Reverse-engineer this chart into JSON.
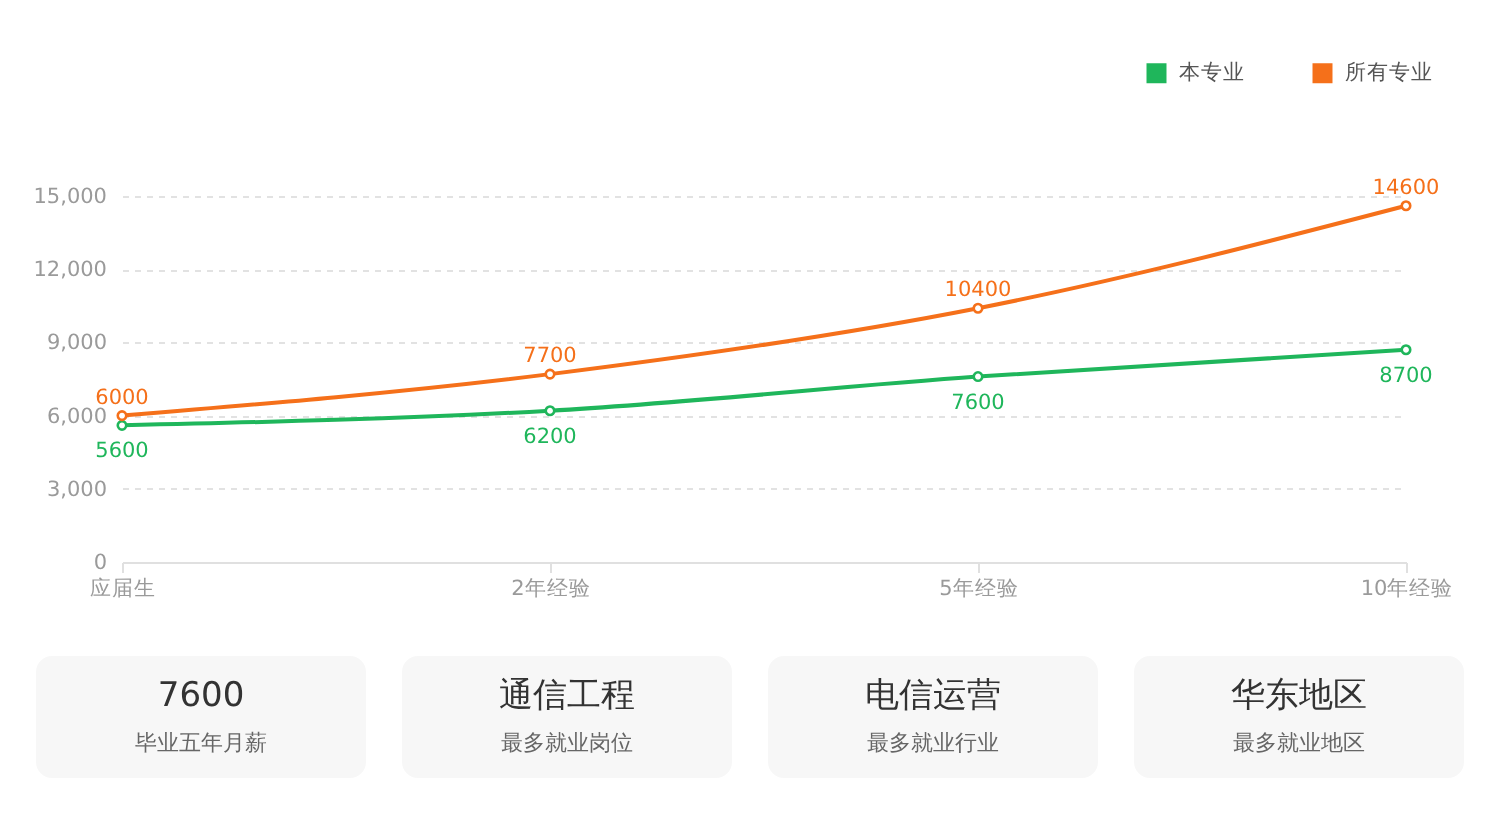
{
  "chart_data": [
    {
      "type": "line",
      "categories": [
        "应届生",
        "2年经验",
        "5年经验",
        "10年经验"
      ],
      "series": [
        {
          "name": "本专业",
          "color": "#1fb65b",
          "values": [
            5600,
            6200,
            7600,
            8700
          ]
        },
        {
          "name": "所有专业",
          "color": "#f5701a",
          "values": [
            6000,
            7700,
            10400,
            14600
          ]
        }
      ],
      "ylim": [
        0,
        15000
      ],
      "yticks": [
        0,
        {
          "value": 3000,
          "label": "3,000"
        },
        {
          "value": 6000,
          "label": "6,000"
        },
        {
          "value": 9000,
          "label": "9,000"
        },
        {
          "value": 12000,
          "label": "12,000"
        },
        {
          "value": 15000,
          "label": "15,000"
        }
      ],
      "grid": "y",
      "legend": "top right",
      "marker": "circle",
      "line_style": "solid",
      "data_labels": true
    },
    {
      "type": "other",
      "title": "7600",
      "subtitle": "毕业五年月薪"
    },
    {
      "type": "other",
      "title": "通信工程",
      "subtitle": "最多就业岗位"
    },
    {
      "type": "other",
      "title": "电信运营",
      "subtitle": "最多就业行业"
    },
    {
      "type": "other",
      "title": "华东地区",
      "subtitle": "最多就业地区"
    }
  ]
}
